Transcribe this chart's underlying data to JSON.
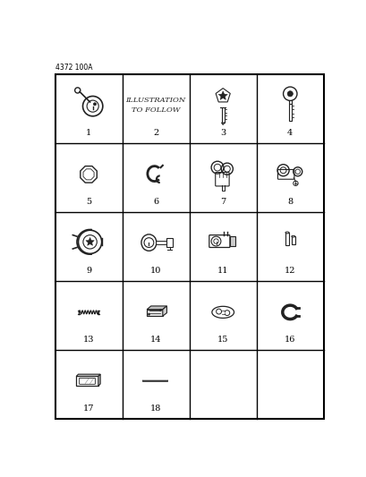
{
  "title": "4372 100A",
  "bg_color": "#ffffff",
  "grid_color": "#000000",
  "text_color": "#000000",
  "part_color": "#222222",
  "grid_rows": 5,
  "grid_cols": 4,
  "figsize": [
    4.1,
    5.33
  ],
  "dpi": 100,
  "labels": [
    "1",
    "2",
    "3",
    "4",
    "5",
    "6",
    "7",
    "8",
    "9",
    "10",
    "11",
    "12",
    "13",
    "14",
    "15",
    "16",
    "17",
    "18"
  ],
  "label2_text": "ILLUSTRATION\nTO FOLLOW",
  "header_text": "4372 100A"
}
